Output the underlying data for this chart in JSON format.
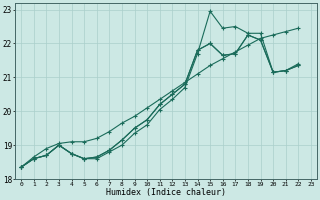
{
  "xlabel": "Humidex (Indice chaleur)",
  "bg_color": "#cce8e4",
  "grid_color": "#aacfcb",
  "line_color": "#1a6b5a",
  "marker": "+",
  "xlim": [
    -0.5,
    23.5
  ],
  "ylim": [
    18,
    23.2
  ],
  "xticks": [
    0,
    1,
    2,
    3,
    4,
    5,
    6,
    7,
    8,
    9,
    10,
    11,
    12,
    13,
    14,
    15,
    16,
    17,
    18,
    19,
    20,
    21,
    22,
    23
  ],
  "yticks": [
    18,
    19,
    20,
    21,
    22,
    23
  ],
  "series": [
    {
      "x": [
        0,
        1,
        2,
        3,
        4,
        5,
        6,
        7,
        8,
        9,
        10,
        11,
        12,
        13,
        14,
        15,
        16,
        17,
        18,
        19,
        20,
        21,
        22
      ],
      "y": [
        18.35,
        18.6,
        18.7,
        19.0,
        18.75,
        18.6,
        18.6,
        18.8,
        19.0,
        19.35,
        19.6,
        20.05,
        20.35,
        20.7,
        21.7,
        22.95,
        22.45,
        22.5,
        22.3,
        22.3,
        21.15,
        21.2,
        21.4
      ]
    },
    {
      "x": [
        0,
        1,
        2,
        3,
        4,
        5,
        6,
        7,
        8,
        9,
        10,
        11,
        12,
        13,
        14,
        15,
        16,
        17,
        18,
        19,
        20,
        21,
        22
      ],
      "y": [
        18.35,
        18.6,
        18.7,
        19.0,
        18.75,
        18.6,
        18.65,
        18.85,
        19.15,
        19.5,
        19.75,
        20.2,
        20.5,
        20.8,
        21.8,
        22.0,
        21.65,
        21.7,
        22.25,
        22.1,
        21.15,
        21.2,
        21.35
      ]
    },
    {
      "x": [
        0,
        1,
        2,
        3,
        4,
        5,
        6,
        7,
        8,
        9,
        10,
        11,
        12,
        13,
        14,
        15,
        16,
        17,
        18,
        19,
        20,
        21,
        22
      ],
      "y": [
        18.35,
        18.6,
        18.7,
        19.0,
        18.75,
        18.6,
        18.65,
        18.85,
        19.15,
        19.5,
        19.75,
        20.2,
        20.5,
        20.8,
        21.8,
        22.0,
        21.65,
        21.7,
        22.25,
        22.1,
        21.15,
        21.2,
        21.35
      ]
    },
    {
      "x": [
        0,
        1,
        2,
        3,
        4,
        5,
        6,
        7,
        8,
        9,
        10,
        11,
        12,
        13,
        14,
        15,
        16,
        17,
        18,
        19,
        20,
        21,
        22
      ],
      "y": [
        18.35,
        18.65,
        18.9,
        19.05,
        19.1,
        19.1,
        19.2,
        19.4,
        19.65,
        19.85,
        20.1,
        20.35,
        20.6,
        20.85,
        21.1,
        21.35,
        21.55,
        21.75,
        21.95,
        22.15,
        22.25,
        22.35,
        22.45
      ]
    }
  ]
}
